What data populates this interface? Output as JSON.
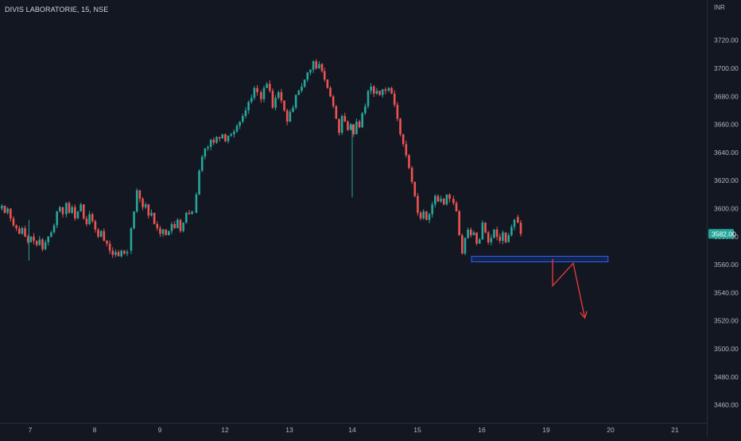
{
  "header": {
    "symbol_title": "DIVIS LABORATORIE, 15, NSE",
    "currency": "INR"
  },
  "colors": {
    "background": "#131722",
    "up": "#26a69a",
    "down": "#ef5350",
    "axis_text": "#b2b5be",
    "last_price_bg": "#26a69a",
    "zone_stroke": "#2962ff",
    "arrow": "#e0393e"
  },
  "chart_data": {
    "type": "candlestick",
    "title": "DIVIS LABORATORIE, 15, NSE",
    "ylim": [
      3450,
      3730
    ],
    "y_ticks": [
      3720,
      3700,
      3680,
      3660,
      3640,
      3620,
      3600,
      3580,
      3560,
      3540,
      3520,
      3500,
      3480,
      3460
    ],
    "x_ticks": [
      "7",
      "8",
      "9",
      "12",
      "13",
      "14",
      "15",
      "16",
      "19",
      "20",
      "21"
    ],
    "last_price": "3582.00",
    "sessions": [
      {
        "day": "7",
        "open": 3600,
        "path": [
          3602,
          3597,
          3600,
          3593,
          3588,
          3586,
          3582,
          3586,
          3580,
          3576,
          3580,
          3577,
          3574,
          3578,
          3571,
          3576,
          3580,
          3583,
          3588,
          3598,
          3601,
          3596
        ]
      },
      {
        "day": "8",
        "open": 3596,
        "path": [
          3604,
          3597,
          3601,
          3593,
          3598,
          3603,
          3593,
          3589,
          3596,
          3591,
          3585,
          3580,
          3584,
          3577,
          3575,
          3570,
          3567,
          3569,
          3566,
          3570,
          3568,
          3569
        ]
      },
      {
        "day": "9",
        "open": 3570,
        "path": [
          3586,
          3598,
          3613,
          3607,
          3601,
          3603,
          3595,
          3597,
          3589,
          3586,
          3582,
          3585,
          3581,
          3584,
          3589,
          3586,
          3592,
          3584,
          3590,
          3597,
          3596,
          3598
        ]
      },
      {
        "day": "12",
        "open": 3597,
        "path": [
          3610,
          3627,
          3637,
          3643,
          3644,
          3649,
          3647,
          3651,
          3650,
          3653,
          3648,
          3652,
          3653,
          3655,
          3659,
          3662,
          3666,
          3670,
          3676,
          3679,
          3686,
          3683
        ]
      },
      {
        "day": "13",
        "open": 3683,
        "path": [
          3678,
          3686,
          3689,
          3684,
          3672,
          3679,
          3683,
          3677,
          3670,
          3662,
          3669,
          3672,
          3681,
          3684,
          3687,
          3692,
          3697,
          3699,
          3705,
          3700,
          3703,
          3698
        ]
      },
      {
        "day": "14",
        "open": 3698,
        "path": [
          3692,
          3686,
          3680,
          3673,
          3664,
          3654,
          3666,
          3662,
          3656,
          3660,
          3653,
          3662,
          3658,
          3668,
          3673,
          3684,
          3687,
          3682,
          3684,
          3681,
          3685,
          3684
        ]
      },
      {
        "day": "15",
        "open": 3684,
        "path": [
          3686,
          3682,
          3674,
          3664,
          3653,
          3646,
          3638,
          3629,
          3619,
          3609,
          3597,
          3593,
          3598,
          3592,
          3596,
          3603,
          3609,
          3605,
          3607,
          3603,
          3610,
          3607
        ]
      },
      {
        "day": "16",
        "open": 3607,
        "path": [
          3604,
          3598,
          3581,
          3568,
          3579,
          3585,
          3581,
          3583,
          3575,
          3578,
          3590,
          3583,
          3576,
          3579,
          3585,
          3580,
          3577,
          3583,
          3576,
          3581,
          3587,
          3592
        ]
      },
      {
        "day": "19",
        "open": 3594,
        "path": [
          3590,
          3582
        ]
      }
    ],
    "support_zone": {
      "x_start_session": "16",
      "x_end_session": "20",
      "y_low": 3562,
      "y_high": 3566
    },
    "projection_path": [
      {
        "day_offset": 8.1,
        "price": 3564
      },
      {
        "day_offset": 8.1,
        "price": 3545
      },
      {
        "day_offset": 8.42,
        "price": 3561
      },
      {
        "day_offset": 8.6,
        "price": 3522
      }
    ]
  }
}
